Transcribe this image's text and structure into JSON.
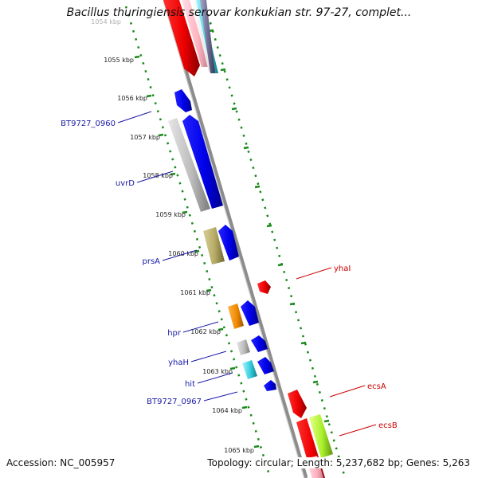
{
  "title": "Bacillus thuringiensis serovar konkukian str. 97-27, complet...",
  "accession": "Accession: NC_005957",
  "summary": "Topology: circular; Length: 5,237,682 bp; Genes: 5,263",
  "colors": {
    "forward_gene": "#0000ee",
    "reverse_gene": "#ee0000",
    "forward_label": "#1a1aa8",
    "reverse_label": "#cc0000",
    "ticks": "#1b8a1b",
    "backbone": "#888888"
  },
  "kbp_ticks": [
    "1054 kbp",
    "1055 kbp",
    "1056 kbp",
    "1057 kbp",
    "1058 kbp",
    "1059 kbp",
    "1060 kbp",
    "1061 kbp",
    "1062 kbp",
    "1063 kbp",
    "1064 kbp",
    "1065 kbp"
  ],
  "gene_labels": [
    {
      "name": "BT9727_0960",
      "strand": "forward"
    },
    {
      "name": "uvrD",
      "strand": "forward"
    },
    {
      "name": "prsA",
      "strand": "forward"
    },
    {
      "name": "hpr",
      "strand": "forward"
    },
    {
      "name": "yhaH",
      "strand": "forward"
    },
    {
      "name": "hit",
      "strand": "forward"
    },
    {
      "name": "BT9727_0967",
      "strand": "forward"
    },
    {
      "name": "yhaI",
      "strand": "reverse"
    },
    {
      "name": "ecsA",
      "strand": "reverse"
    },
    {
      "name": "ecsB",
      "strand": "reverse"
    }
  ]
}
